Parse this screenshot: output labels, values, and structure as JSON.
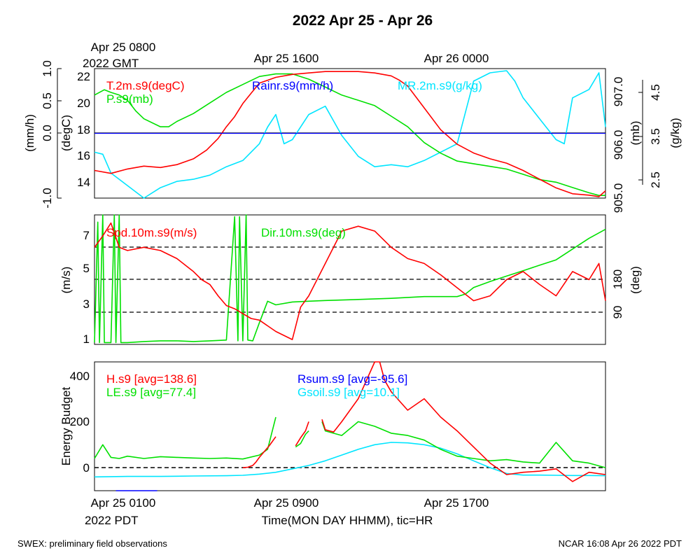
{
  "title": "2022 Apr 25 - Apr 26",
  "top_axis": {
    "ticks": [
      "Apr 25 0800",
      "Apr 25 1600",
      "Apr 26 0000"
    ],
    "year": "2022 GMT"
  },
  "bottom_axis": {
    "ticks": [
      "Apr 25 0100",
      "Apr 25 0900",
      "Apr 25 1700"
    ],
    "year": "2022 PDT",
    "label": "Time(MON DAY HHMM), tic=HR"
  },
  "footer": {
    "left": "SWEX: preliminary field observations",
    "right": "NCAR 16:08 Apr 26 2022 PDT"
  },
  "colors": {
    "red": "#ff0000",
    "green": "#00e000",
    "blue": "#0000ff",
    "cyan": "#00e5ff",
    "black": "#000000"
  },
  "chart_data": [
    {
      "type": "line",
      "panel": "top",
      "x_unit": "hours from Apr 25 0100 PDT",
      "xlim": [
        0,
        31
      ],
      "axes": {
        "rain_ylabel": "(mm/h)",
        "rain_ylim": [
          -1.0,
          1.0
        ],
        "rain_ticks": [
          "-1.0",
          "0.0",
          "0.5",
          "1.0"
        ],
        "temp_ylabel": "(degC)",
        "temp_ylim": [
          13.3,
          22.2
        ],
        "temp_ticks": [
          "14",
          "16",
          "18",
          "20",
          "22"
        ],
        "pres_ylabel": "(mb)",
        "pres_ylim": [
          904.95,
          907.4
        ],
        "pres_ticks": [
          "905.0",
          "906.0",
          "907.0"
        ],
        "mr_ylabel": "(g/kg)",
        "mr_ylim": [
          2.3,
          5.4
        ],
        "mr_ticks": [
          "2.5",
          "3.5",
          "4.5"
        ]
      },
      "series": [
        {
          "name": "T.2m.s9(degC)",
          "color": "red",
          "axis": "temp",
          "x": [
            0,
            1,
            2,
            3,
            4,
            5,
            6,
            6.8,
            7.5,
            8,
            8.5,
            9,
            9.5,
            10,
            11,
            12,
            13,
            14,
            15,
            16,
            17,
            18,
            18.5,
            19,
            20,
            21,
            22,
            23,
            24,
            25,
            26,
            27,
            28,
            29,
            30,
            30.6,
            31
          ],
          "y": [
            15.2,
            15.0,
            15.3,
            15.5,
            15.4,
            15.6,
            16.0,
            16.6,
            17.4,
            18.2,
            18.9,
            19.8,
            20.5,
            21.2,
            21.6,
            21.8,
            21.9,
            22.0,
            22.0,
            22.0,
            21.9,
            21.7,
            21.4,
            21.0,
            19.5,
            18.0,
            17.0,
            16.4,
            16.0,
            15.7,
            15.2,
            14.6,
            14.0,
            13.6,
            13.5,
            13.4,
            13.8
          ]
        },
        {
          "name": "P.s9(mb)",
          "color": "green",
          "axis": "pres",
          "x": [
            0,
            0.6,
            1,
            1.5,
            2,
            2.5,
            3,
            4,
            4.5,
            5,
            6,
            7,
            8,
            9,
            10,
            11,
            12,
            13,
            14,
            15,
            16,
            17,
            18,
            19,
            20,
            21,
            22,
            23,
            24,
            25,
            26,
            27,
            28,
            29,
            30,
            30.6,
            31
          ],
          "y": [
            906.9,
            907.0,
            906.95,
            906.9,
            906.8,
            906.6,
            906.45,
            906.3,
            906.3,
            906.4,
            906.55,
            906.75,
            906.95,
            907.1,
            907.25,
            907.3,
            907.3,
            907.2,
            907.05,
            906.9,
            906.8,
            906.7,
            906.5,
            906.3,
            906.0,
            905.8,
            905.65,
            905.6,
            905.55,
            905.5,
            905.4,
            905.3,
            905.25,
            905.15,
            905.05,
            905.0,
            905.0
          ]
        },
        {
          "name": "MR.2m.s9(g/kg)",
          "color": "cyan",
          "axis": "mr",
          "x": [
            0,
            0.5,
            1,
            2,
            3,
            4,
            5,
            6,
            7,
            8,
            9,
            10,
            10.5,
            11,
            11.5,
            12,
            13,
            14,
            15,
            16,
            17,
            18,
            19,
            20,
            21,
            22,
            23,
            24,
            25,
            25.5,
            26,
            27,
            28,
            28.5,
            29,
            30,
            30.6,
            31
          ],
          "y": [
            3.4,
            3.35,
            2.9,
            2.6,
            2.3,
            2.55,
            2.7,
            2.75,
            2.85,
            3.05,
            3.2,
            3.6,
            4.0,
            4.3,
            3.6,
            3.7,
            4.3,
            4.5,
            3.8,
            3.3,
            3.05,
            3.1,
            3.05,
            3.2,
            3.4,
            3.6,
            5.1,
            5.3,
            5.35,
            5.1,
            4.7,
            4.2,
            3.7,
            3.6,
            4.7,
            4.9,
            5.3,
            4.0
          ]
        },
        {
          "name": "Rainr.s9(mm/h)",
          "color": "blue",
          "axis": "rain",
          "x": [
            0,
            31
          ],
          "y": [
            0.0,
            0.0
          ]
        }
      ]
    },
    {
      "type": "line",
      "panel": "middle",
      "x_unit": "hours from Apr 25 0100 PDT",
      "xlim": [
        0,
        31
      ],
      "axes": {
        "spd_ylabel": "(m/s)",
        "spd_ylim": [
          0.5,
          8.5
        ],
        "spd_ticks": [
          "1",
          "3",
          "5",
          "7"
        ],
        "dir_ylabel": "(deg)",
        "dir_ylim": [
          0,
          360
        ],
        "dir_ticks": [
          "90",
          "180"
        ],
        "reference_lines_deg": [
          90,
          180,
          270
        ]
      },
      "series": [
        {
          "name": "Spd.10m.s9(m/s)",
          "color": "red",
          "axis": "spd",
          "x": [
            0,
            0.5,
            1,
            1.5,
            2,
            3,
            4,
            5,
            6,
            6.5,
            7,
            7.5,
            8,
            8.5,
            9,
            9.5,
            10,
            11,
            12,
            12.5,
            13,
            14,
            15,
            16,
            17,
            18,
            19,
            20,
            21,
            22,
            23,
            24,
            25,
            26,
            27,
            28,
            29,
            30,
            30.6,
            31
          ],
          "y": [
            6.5,
            7.2,
            8.0,
            6.5,
            6.3,
            6.5,
            6.3,
            5.8,
            5.0,
            4.5,
            4.2,
            3.5,
            2.9,
            2.7,
            2.4,
            2.1,
            2.0,
            1.3,
            0.8,
            2.8,
            3.5,
            5.5,
            7.5,
            7.8,
            7.5,
            6.5,
            5.8,
            5.5,
            4.8,
            4.0,
            3.2,
            3.5,
            4.5,
            5.0,
            4.2,
            3.5,
            5.0,
            4.5,
            5.5,
            3.2
          ]
        },
        {
          "name": "Dir.10m.s9(deg)",
          "color": "green",
          "axis": "dir",
          "x": [
            0,
            0.2,
            0.3,
            0.5,
            0.6,
            1,
            1.2,
            1.3,
            1.5,
            1.6,
            2,
            3,
            4,
            5,
            6,
            7,
            8,
            8.5,
            8.7,
            8.8,
            9,
            9.2,
            9.3,
            9.6,
            10,
            10.5,
            11,
            12,
            13,
            14,
            16,
            18,
            20,
            22,
            22.5,
            23,
            24,
            25,
            26,
            27,
            28,
            29,
            30,
            31
          ],
          "y": [
            5,
            340,
            5,
            360,
            5,
            5,
            360,
            5,
            360,
            5,
            5,
            8,
            10,
            10,
            8,
            10,
            12,
            355,
            10,
            355,
            10,
            360,
            12,
            10,
            60,
            120,
            110,
            118,
            120,
            122,
            125,
            128,
            133,
            133,
            140,
            158,
            175,
            190,
            205,
            220,
            235,
            265,
            295,
            320
          ]
        }
      ]
    },
    {
      "type": "line",
      "panel": "bottom",
      "x_unit": "hours from Apr 25 0100 PDT",
      "xlim": [
        0,
        31
      ],
      "axes": {
        "ylabel": "Energy Budget",
        "ylim": [
          -100,
          460
        ],
        "yticks": [
          "0",
          "200",
          "400"
        ],
        "reference_line": 0
      },
      "series": [
        {
          "name": "H.s9 [avg=138.6]",
          "color": "red",
          "segments": [
            {
              "x": [
                9,
                9.3,
                9.6,
                9.8,
                10,
                10.3,
                10.6,
                10.8,
                11
              ],
              "y": [
                0,
                2,
                10,
                25,
                45,
                70,
                95,
                115,
                135
              ]
            },
            {
              "x": [
                12.2,
                12.5,
                12.8,
                13
              ],
              "y": [
                95,
                130,
                160,
                200
              ]
            },
            {
              "x": [
                13.8,
                14,
                14.5,
                15,
                16,
                17,
                17.3,
                17.6,
                18,
                19,
                20,
                21,
                22,
                23,
                24,
                25,
                26,
                27,
                28,
                29,
                30,
                31
              ],
              "y": [
                210,
                165,
                155,
                200,
                300,
                480,
                470,
                380,
                330,
                250,
                300,
                220,
                160,
                90,
                20,
                -30,
                -20,
                -15,
                -5,
                -60,
                -20,
                -30
              ]
            }
          ]
        },
        {
          "name": "LE.s9 [avg=77.4]",
          "color": "green",
          "segments": [
            {
              "x": [
                0,
                0.5,
                1,
                1.5,
                2,
                3,
                4,
                5,
                6,
                7,
                8,
                9,
                10,
                10.5,
                11
              ],
              "y": [
                40,
                100,
                45,
                40,
                50,
                40,
                48,
                45,
                42,
                40,
                42,
                38,
                55,
                80,
                220
              ]
            },
            {
              "x": [
                12.2,
                12.5,
                12.8,
                13
              ],
              "y": [
                90,
                105,
                145,
                160
              ]
            },
            {
              "x": [
                13.8,
                14,
                15,
                16,
                17,
                18,
                19,
                20,
                21,
                22,
                23,
                24,
                25,
                26,
                27,
                28,
                29,
                30,
                31
              ],
              "y": [
                200,
                160,
                140,
                200,
                180,
                150,
                140,
                120,
                80,
                50,
                40,
                30,
                35,
                25,
                20,
                110,
                30,
                20,
                0
              ]
            }
          ]
        },
        {
          "name": "Rsum.s9 [avg=-95.6]",
          "color": "blue",
          "segments": [
            {
              "x": [
                1.3,
                3.8
              ],
              "y": [
                -100,
                -100
              ]
            }
          ]
        },
        {
          "name": "Gsoil.s9 [avg=10.1]",
          "color": "cyan",
          "segments": [
            {
              "x": [
                0,
                2,
                4,
                6,
                8,
                9,
                10,
                11,
                12,
                13,
                14,
                15,
                16,
                17,
                18,
                19,
                20,
                21,
                22,
                23,
                24,
                25,
                26,
                27,
                28,
                29,
                30,
                31
              ],
              "y": [
                -40,
                -38,
                -38,
                -36,
                -35,
                -33,
                -28,
                -20,
                -5,
                10,
                30,
                55,
                80,
                100,
                110,
                108,
                100,
                85,
                60,
                30,
                0,
                -25,
                -32,
                -32,
                -33,
                -34,
                -34,
                -35
              ]
            }
          ]
        }
      ]
    }
  ]
}
